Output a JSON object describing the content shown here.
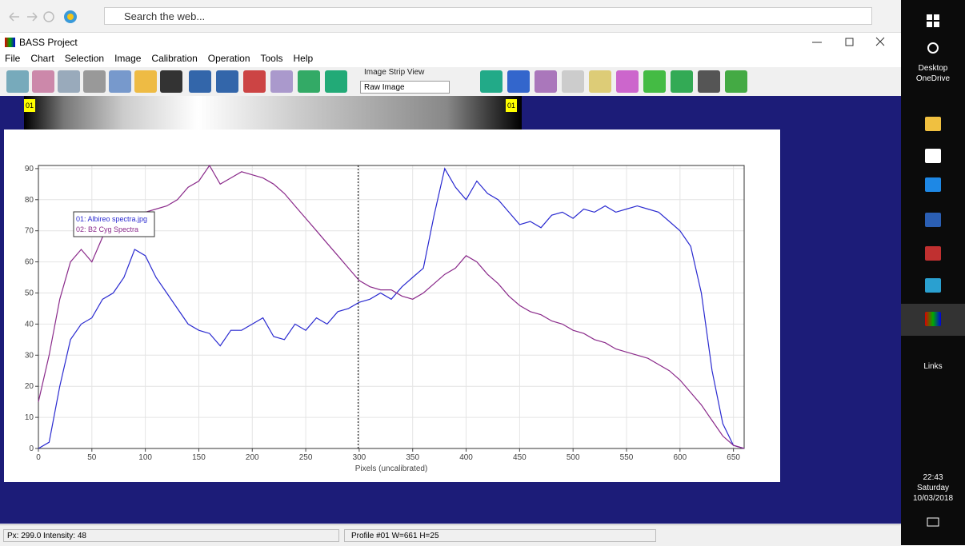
{
  "browser": {
    "search_placeholder": "Search the web..."
  },
  "app": {
    "title": "BASS Project",
    "menu": [
      "File",
      "Chart",
      "Selection",
      "Image",
      "Calibration",
      "Operation",
      "Tools",
      "Help"
    ],
    "strip_view_label": "Image Strip View",
    "strip_view_option": "Raw Image",
    "strip_start_label": "01",
    "strip_end_label": "01"
  },
  "chart_data": {
    "type": "line",
    "x_label": "Pixels (uncalibrated)",
    "x": [
      0,
      10,
      20,
      30,
      40,
      50,
      60,
      70,
      80,
      90,
      100,
      110,
      120,
      130,
      140,
      150,
      160,
      170,
      180,
      190,
      200,
      210,
      220,
      230,
      240,
      250,
      260,
      270,
      280,
      290,
      300,
      310,
      320,
      330,
      340,
      350,
      360,
      370,
      380,
      390,
      400,
      410,
      420,
      430,
      440,
      450,
      460,
      470,
      480,
      490,
      500,
      510,
      520,
      530,
      540,
      550,
      560,
      570,
      580,
      590,
      600,
      610,
      620,
      630,
      640,
      650,
      660
    ],
    "series": [
      {
        "name": "01: Albireo spectra.jpg",
        "color": "#2a2ad0",
        "values": [
          0,
          2,
          20,
          35,
          40,
          42,
          48,
          50,
          55,
          64,
          62,
          55,
          50,
          45,
          40,
          38,
          37,
          33,
          38,
          38,
          40,
          42,
          36,
          35,
          40,
          38,
          42,
          40,
          44,
          45,
          47,
          48,
          50,
          48,
          52,
          55,
          58,
          75,
          90,
          84,
          80,
          86,
          82,
          80,
          76,
          72,
          73,
          71,
          75,
          76,
          74,
          77,
          76,
          78,
          76,
          77,
          78,
          77,
          76,
          73,
          70,
          65,
          50,
          25,
          8,
          1,
          0
        ]
      },
      {
        "name": "02: B2 Cyg Spectra",
        "color": "#8a2a8a",
        "values": [
          15,
          30,
          48,
          60,
          64,
          60,
          68,
          72,
          74,
          75,
          76,
          77,
          78,
          80,
          84,
          86,
          91,
          85,
          87,
          89,
          88,
          87,
          85,
          82,
          78,
          74,
          70,
          66,
          62,
          58,
          54,
          52,
          51,
          51,
          49,
          48,
          50,
          53,
          56,
          58,
          62,
          60,
          56,
          53,
          49,
          46,
          44,
          43,
          41,
          40,
          38,
          37,
          35,
          34,
          32,
          31,
          30,
          29,
          27,
          25,
          22,
          18,
          14,
          9,
          4,
          1,
          0
        ]
      }
    ],
    "xlim": [
      0,
      660
    ],
    "xticks": [
      0,
      50,
      100,
      150,
      200,
      250,
      300,
      350,
      400,
      450,
      500,
      550,
      600,
      650
    ],
    "ylim": [
      0,
      91
    ],
    "yticks": [
      0,
      10,
      20,
      30,
      40,
      50,
      60,
      70,
      80,
      90
    ],
    "grid": true,
    "legend": "upper left",
    "cursor_x": 299
  },
  "status": {
    "left": "Px: 299.0  Intensity: 48",
    "right": "Profile #01 W=661 H=25"
  },
  "taskbar": {
    "desktop": "Desktop",
    "onedrive": "OneDrive",
    "links": "Links",
    "time": "22:43",
    "day": "Saturday",
    "date": "10/03/2018"
  }
}
